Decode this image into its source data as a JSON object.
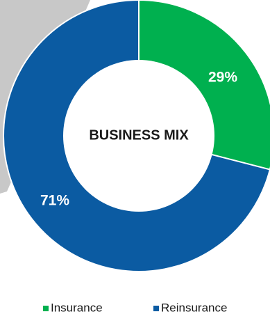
{
  "chart_data": {
    "type": "pie",
    "donut": true,
    "center_title": "BUSINESS MIX",
    "slices": [
      {
        "name": "Insurance",
        "value": 29,
        "label": "29%",
        "color": "#00b04f"
      },
      {
        "name": "Reinsurance",
        "value": 71,
        "label": "71%",
        "color": "#0b5ba2"
      }
    ],
    "legend": {
      "placement": "bottom",
      "items": [
        {
          "label": "Insurance",
          "color": "#00b04f"
        },
        {
          "label": "Reinsurance",
          "color": "#0b5ba2"
        }
      ]
    }
  },
  "colors": {
    "background_band": "#c8c8c8",
    "insurance": "#00b04f",
    "reinsurance": "#0b5ba2",
    "center_fill": "#ffffff"
  }
}
